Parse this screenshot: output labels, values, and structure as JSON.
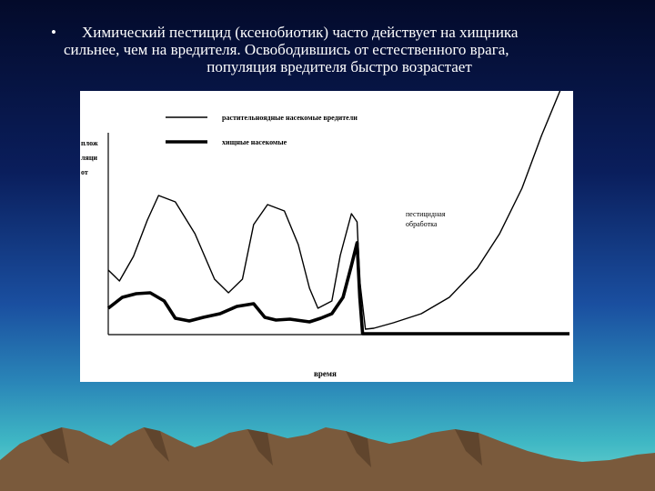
{
  "slide": {
    "bullet": "•",
    "text_lines": [
      "Химический пестицид (ксенобиотик) часто действует на хищника",
      "сильнее, чем на вредителя. Освободившись от естественного врага,",
      "популяция вредителя быстро возрастает"
    ]
  },
  "chart_data": {
    "type": "line",
    "title": "",
    "xlabel": "время",
    "ylabel_lines": [
      "плож",
      "ляци",
      "от"
    ],
    "annotation_lines": [
      "пестицидная",
      "обработка"
    ],
    "series": [
      {
        "name": "растительноядные насекомые вредители",
        "color": "#000000",
        "points": [
          [
            0,
            70
          ],
          [
            4,
            58
          ],
          [
            9,
            85
          ],
          [
            14,
            125
          ],
          [
            18,
            152
          ],
          [
            24,
            145
          ],
          [
            31,
            110
          ],
          [
            38,
            60
          ],
          [
            43,
            45
          ],
          [
            48,
            60
          ],
          [
            52,
            120
          ],
          [
            57,
            142
          ],
          [
            63,
            135
          ],
          [
            68,
            98
          ],
          [
            72,
            50
          ],
          [
            75,
            28
          ],
          [
            80,
            36
          ],
          [
            83,
            86
          ],
          [
            87,
            132
          ],
          [
            89,
            123
          ],
          [
            90,
            58
          ],
          [
            92,
            5
          ],
          [
            95,
            6
          ],
          [
            102,
            12
          ],
          [
            112,
            22
          ],
          [
            122,
            40
          ],
          [
            132,
            72
          ],
          [
            140,
            110
          ],
          [
            148,
            160
          ],
          [
            155,
            218
          ],
          [
            162,
            270
          ]
        ]
      },
      {
        "name": "хищные насекомые",
        "color": "#000000",
        "points": [
          [
            0,
            28
          ],
          [
            5,
            40
          ],
          [
            10,
            44
          ],
          [
            15,
            45
          ],
          [
            20,
            36
          ],
          [
            24,
            17
          ],
          [
            29,
            14
          ],
          [
            34,
            18
          ],
          [
            40,
            22
          ],
          [
            46,
            30
          ],
          [
            52,
            33
          ],
          [
            56,
            18
          ],
          [
            60,
            15
          ],
          [
            65,
            16
          ],
          [
            72,
            13
          ],
          [
            76,
            17
          ],
          [
            80,
            22
          ],
          [
            84,
            40
          ],
          [
            87,
            75
          ],
          [
            89,
            100
          ],
          [
            90,
            40
          ],
          [
            91,
            0
          ],
          [
            98,
            0
          ],
          [
            120,
            0
          ],
          [
            140,
            0
          ],
          [
            160,
            0
          ],
          [
            165,
            0
          ]
        ]
      }
    ],
    "xlim": [
      0,
      165
    ],
    "ylim": [
      0,
      270
    ],
    "grid": false,
    "legend_placement": "top"
  },
  "colors": {
    "text": "#ffffff",
    "panel": "#ffffff",
    "mountain": "#7a5a3c",
    "mountain_shadow": "#4a3520"
  }
}
